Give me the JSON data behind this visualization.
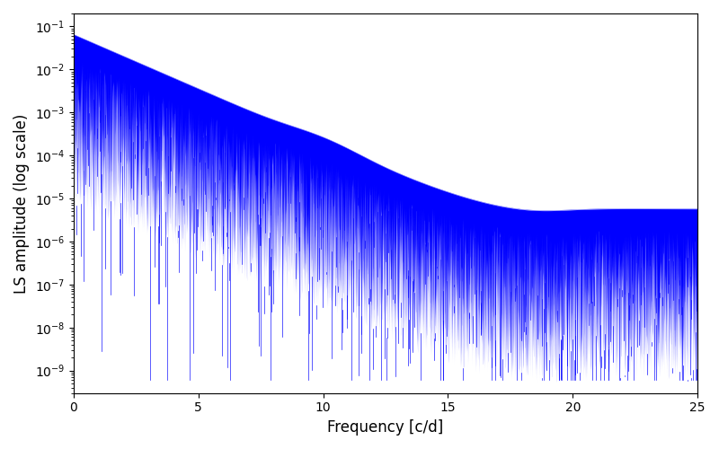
{
  "xlabel": "Frequency [c/d]",
  "ylabel": "LS amplitude (log scale)",
  "xlim": [
    0,
    25
  ],
  "ylim_low": 3e-10,
  "ylim_high": 0.2,
  "line_color": "#0000ff",
  "background_color": "#ffffff",
  "xlabel_fontsize": 12,
  "ylabel_fontsize": 12,
  "tick_fontsize": 10,
  "figsize": [
    8.0,
    5.0
  ],
  "dpi": 100,
  "seed": 42,
  "n_points": 8000
}
